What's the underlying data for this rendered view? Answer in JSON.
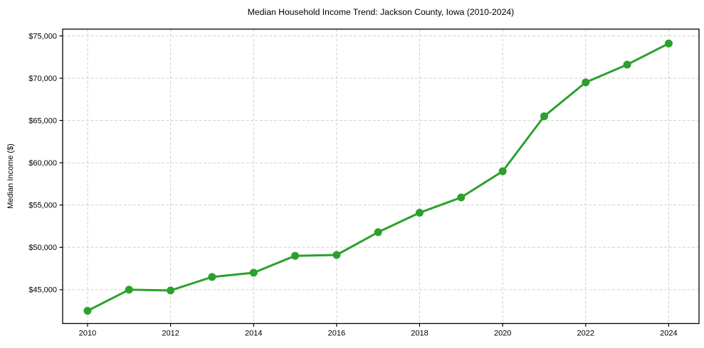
{
  "chart_data": {
    "type": "line",
    "title": "Median Household Income Trend: Jackson County, Iowa (2010-2024)",
    "ylabel": "Median Income ($)",
    "xlabel": "",
    "series_name": "Median Household Income",
    "x": [
      2010,
      2011,
      2012,
      2013,
      2014,
      2015,
      2016,
      2017,
      2018,
      2019,
      2020,
      2021,
      2022,
      2023,
      2024
    ],
    "values": [
      42500,
      45000,
      44900,
      46500,
      47000,
      49000,
      49100,
      51800,
      54100,
      55900,
      59000,
      65500,
      69500,
      71600,
      74100
    ],
    "xticks": [
      2010,
      2012,
      2014,
      2016,
      2018,
      2020,
      2022,
      2024
    ],
    "yticks": [
      45000,
      50000,
      55000,
      60000,
      65000,
      70000,
      75000
    ],
    "ytick_labels": [
      "$45,000",
      "$50,000",
      "$55,000",
      "$60,000",
      "$65,000",
      "$70,000",
      "$75,000"
    ],
    "xlim": [
      2009.4,
      2024.73
    ],
    "ylim": [
      41000,
      75800
    ],
    "grid": true,
    "legend": false,
    "line_color": "#2ca02c",
    "marker_color": "#2ca02c",
    "grid_color": "#d0d0d0",
    "axis_color": "#000000"
  }
}
